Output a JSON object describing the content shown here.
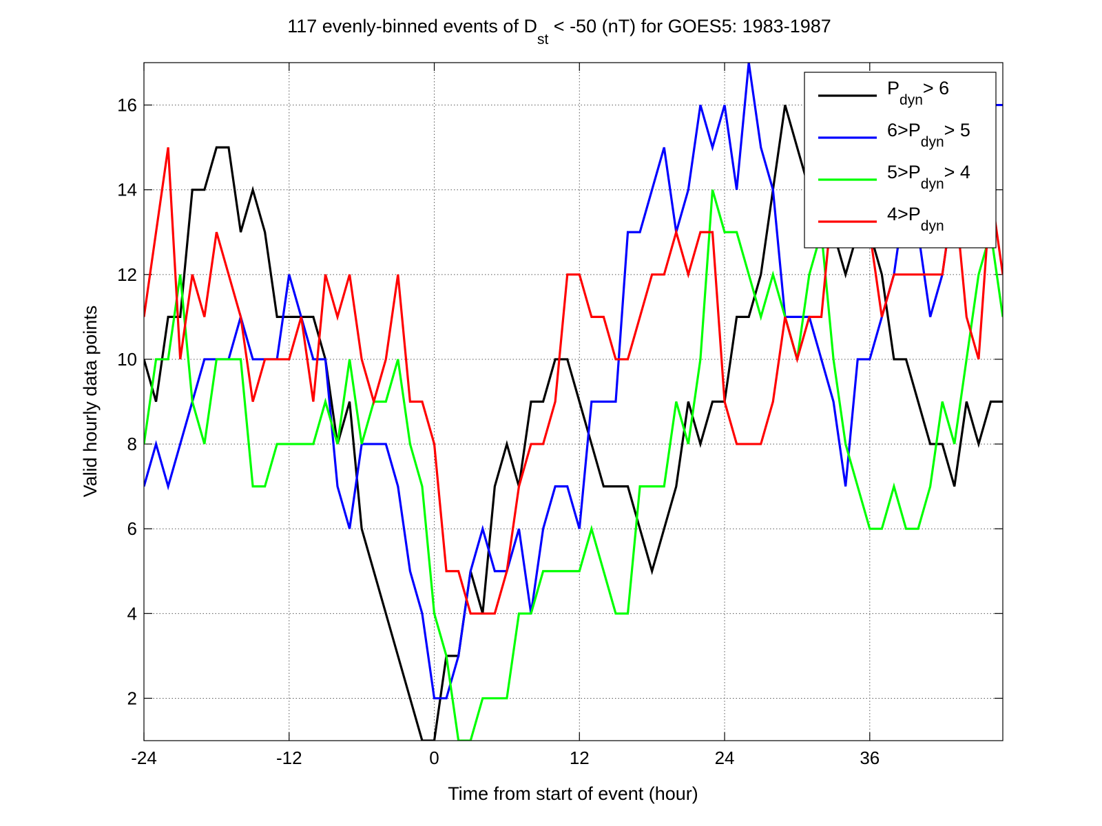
{
  "chart_data": {
    "type": "line",
    "title": {
      "main": "117 evenly-binned events of D",
      "sub": "st",
      "rest": " < -50 (nT) for GOES5: 1983-1987"
    },
    "xlabel": "Time from start of event (hour)",
    "ylabel": "Valid hourly data points",
    "xlim": [
      -24,
      47
    ],
    "ylim": [
      1,
      17
    ],
    "xticks": [
      -24,
      -12,
      0,
      12,
      24,
      36
    ],
    "yticks": [
      2,
      4,
      6,
      8,
      10,
      12,
      14,
      16
    ],
    "grid": true,
    "legend_position": "top-right",
    "x": [
      -24,
      -23,
      -22,
      -21,
      -20,
      -19,
      -18,
      -17,
      -16,
      -15,
      -14,
      -13,
      -12,
      -11,
      -10,
      -9,
      -8,
      -7,
      -6,
      -5,
      -4,
      -3,
      -2,
      -1,
      0,
      1,
      2,
      3,
      4,
      5,
      6,
      7,
      8,
      9,
      10,
      11,
      12,
      13,
      14,
      15,
      16,
      17,
      18,
      19,
      20,
      21,
      22,
      23,
      24,
      25,
      26,
      27,
      28,
      29,
      30,
      31,
      32,
      33,
      34,
      35,
      36,
      37,
      38,
      39,
      40,
      41,
      42,
      43,
      44,
      45,
      46,
      47
    ],
    "series": [
      {
        "name_parts": [
          {
            "t": "P",
            "sub": false
          },
          {
            "t": "dyn",
            "sub": true
          },
          {
            "t": "> 6",
            "sub": false
          }
        ],
        "color": "#000000",
        "values": [
          10,
          9,
          11,
          11,
          14,
          14,
          15,
          15,
          13,
          14,
          13,
          11,
          11,
          11,
          11,
          10,
          8,
          9,
          6,
          5,
          4,
          3,
          2,
          1,
          1,
          3,
          3,
          5,
          4,
          7,
          8,
          7,
          9,
          9,
          10,
          10,
          9,
          8,
          7,
          7,
          7,
          6,
          5,
          6,
          7,
          9,
          8,
          9,
          9,
          11,
          11,
          12,
          14,
          16,
          15,
          14,
          14,
          13,
          12,
          13,
          13,
          12,
          10,
          10,
          9,
          8,
          8,
          7,
          9,
          8,
          9,
          9
        ]
      },
      {
        "name_parts": [
          {
            "t": "6>P",
            "sub": false
          },
          {
            "t": "dyn",
            "sub": true
          },
          {
            "t": "> 5",
            "sub": false
          }
        ],
        "color": "#0000ff",
        "values": [
          7,
          8,
          7,
          8,
          9,
          10,
          10,
          10,
          11,
          10,
          10,
          10,
          12,
          11,
          10,
          10,
          7,
          6,
          8,
          8,
          8,
          7,
          5,
          4,
          2,
          2,
          3,
          5,
          6,
          5,
          5,
          6,
          4,
          6,
          7,
          7,
          6,
          9,
          9,
          9,
          13,
          13,
          14,
          15,
          13,
          14,
          16,
          15,
          16,
          14,
          17,
          15,
          14,
          11,
          11,
          11,
          10,
          9,
          7,
          10,
          10,
          11,
          12,
          14,
          13,
          11,
          12,
          14,
          15,
          15,
          16,
          16
        ]
      },
      {
        "name_parts": [
          {
            "t": "5>P",
            "sub": false
          },
          {
            "t": "dyn",
            "sub": true
          },
          {
            "t": "> 4",
            "sub": false
          }
        ],
        "color": "#00ff00",
        "values": [
          8,
          10,
          10,
          12,
          9,
          8,
          10,
          10,
          10,
          7,
          7,
          8,
          8,
          8,
          8,
          9,
          8,
          10,
          8,
          9,
          9,
          10,
          8,
          7,
          4,
          3,
          1,
          1,
          2,
          2,
          2,
          4,
          4,
          5,
          5,
          5,
          5,
          6,
          5,
          4,
          4,
          7,
          7,
          7,
          9,
          8,
          10,
          14,
          13,
          13,
          12,
          11,
          12,
          11,
          10,
          12,
          13,
          10,
          8,
          7,
          6,
          6,
          7,
          6,
          6,
          7,
          9,
          8,
          10,
          12,
          13,
          11
        ]
      },
      {
        "name_parts": [
          {
            "t": "4>P",
            "sub": false
          },
          {
            "t": "dyn",
            "sub": true
          }
        ],
        "color": "#ff0000",
        "values": [
          11,
          13,
          15,
          10,
          12,
          11,
          13,
          12,
          11,
          9,
          10,
          10,
          10,
          11,
          9,
          12,
          11,
          12,
          10,
          9,
          10,
          12,
          9,
          9,
          8,
          5,
          5,
          4,
          4,
          4,
          5,
          7,
          8,
          8,
          9,
          12,
          12,
          11,
          11,
          10,
          10,
          11,
          12,
          12,
          13,
          12,
          13,
          13,
          9,
          8,
          8,
          8,
          9,
          11,
          10,
          11,
          11,
          14,
          14,
          13,
          13,
          11,
          12,
          12,
          12,
          12,
          12,
          14,
          11,
          10,
          14,
          12
        ]
      }
    ]
  }
}
